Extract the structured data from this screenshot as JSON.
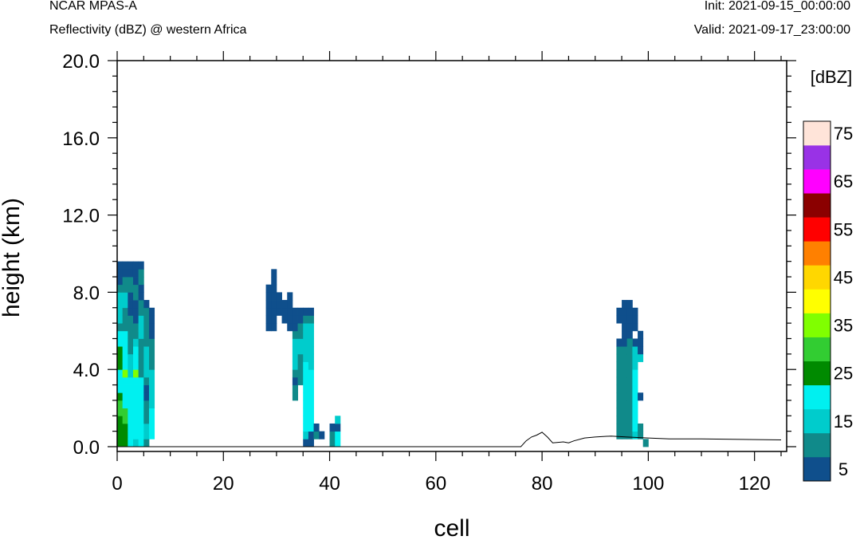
{
  "header": {
    "model": "NCAR MPAS-A",
    "field": "Reflectivity (dBZ) @ western Africa",
    "init": "Init: 2021-09-15_00:00:00",
    "valid": "Valid: 2021-09-17_23:00:00"
  },
  "colors": {
    "frame": "#000000",
    "background": "#ffffff",
    "terrain_line": "#000000"
  },
  "chart_data": {
    "type": "heatmap",
    "xlabel": "cell",
    "ylabel": "height (km)",
    "xlim": [
      0,
      126
    ],
    "ylim": [
      0,
      20
    ],
    "x_ticks": [
      "0",
      "20",
      "40",
      "60",
      "80",
      "100",
      "120"
    ],
    "y_ticks": [
      "0.0",
      "4.0",
      "8.0",
      "12.0",
      "16.0",
      "20.0"
    ],
    "cell_height_km": 0.4,
    "colorbar": {
      "unit_label": "[dBZ]",
      "bins": [
        {
          "color": "#0f4f8c"
        },
        {
          "color": "#108a8a"
        },
        {
          "color": "#00cccc"
        },
        {
          "color": "#00f0f0"
        },
        {
          "color": "#008a00"
        },
        {
          "color": "#32cd32"
        },
        {
          "color": "#80ff00"
        },
        {
          "color": "#ffff00"
        },
        {
          "color": "#ffd700"
        },
        {
          "color": "#ff8000"
        },
        {
          "color": "#ff0000"
        },
        {
          "color": "#8b0000"
        },
        {
          "color": "#ff00ff"
        },
        {
          "color": "#9932e6"
        },
        {
          "color": "#ffe4d9"
        }
      ],
      "tick_labels": [
        "5",
        "15",
        "25",
        "35",
        "45",
        "55",
        "65",
        "75"
      ]
    },
    "columns": [
      {
        "x": 0,
        "cells": [
          5,
          5,
          5,
          5,
          6,
          6,
          5,
          4,
          4,
          4,
          5,
          5,
          5,
          4,
          4,
          2,
          3,
          3,
          3,
          3,
          2,
          1,
          1,
          1,
          0
        ]
      },
      {
        "x": 1,
        "cells": [
          5,
          5,
          5,
          6,
          6,
          4,
          4,
          4,
          4,
          7,
          4,
          4,
          4,
          4,
          4,
          2,
          2,
          2,
          3,
          3,
          2,
          2,
          1,
          1,
          0
        ]
      },
      {
        "x": 2,
        "cells": [
          4,
          4,
          4,
          4,
          4,
          4,
          4,
          4,
          4,
          3,
          3,
          3,
          2,
          2,
          2,
          2,
          2,
          1,
          1,
          1,
          2,
          2,
          1,
          1,
          0
        ]
      },
      {
        "x": 3,
        "cells": [
          3,
          4,
          4,
          4,
          4,
          4,
          4,
          4,
          4,
          7,
          4,
          4,
          4,
          3,
          2,
          2,
          1,
          1,
          1,
          2,
          2,
          1,
          1,
          1,
          0
        ]
      },
      {
        "x": 4,
        "cells": [
          4,
          4,
          4,
          4,
          4,
          4,
          4,
          4,
          4,
          2,
          2,
          2,
          2,
          2,
          3,
          3,
          3,
          2,
          2,
          1,
          1,
          2,
          2,
          1,
          0
        ]
      },
      {
        "x": 5,
        "cells": [
          2,
          3,
          3,
          2,
          2,
          2,
          1,
          1,
          2,
          3,
          3,
          3,
          3,
          2,
          2,
          2,
          2,
          2,
          1,
          0,
          0,
          0,
          0,
          0,
          0
        ]
      },
      {
        "x": 6,
        "cells": [
          0,
          4,
          4,
          4,
          4,
          3,
          3,
          3,
          3,
          3,
          2,
          2,
          2,
          2,
          1,
          1,
          1,
          1,
          0,
          0,
          0,
          0,
          0,
          0,
          0
        ]
      },
      {
        "x": 28,
        "cells": [
          0,
          0,
          0,
          0,
          0,
          0,
          0,
          0,
          0,
          0,
          0,
          0,
          0,
          0,
          0,
          1,
          1,
          1,
          1,
          1,
          1,
          0,
          0,
          0,
          0
        ]
      },
      {
        "x": 29,
        "cells": [
          0,
          0,
          0,
          0,
          0,
          0,
          0,
          0,
          0,
          0,
          0,
          0,
          0,
          0,
          0,
          1,
          1,
          1,
          1,
          1,
          1,
          1,
          1,
          0,
          0
        ]
      },
      {
        "x": 30,
        "cells": [
          0,
          0,
          0,
          0,
          0,
          0,
          0,
          0,
          0,
          0,
          0,
          0,
          0,
          0,
          0,
          0,
          0,
          1,
          1,
          1,
          0,
          0,
          0,
          0,
          0
        ]
      },
      {
        "x": 31,
        "cells": [
          0,
          0,
          0,
          0,
          0,
          0,
          0,
          0,
          0,
          0,
          0,
          0,
          0,
          0,
          0,
          0,
          1,
          1,
          1,
          0,
          0,
          0,
          0,
          0,
          0
        ]
      },
      {
        "x": 32,
        "cells": [
          0,
          0,
          0,
          0,
          0,
          0,
          0,
          0,
          0,
          0,
          0,
          0,
          0,
          0,
          0,
          1,
          1,
          1,
          1,
          1,
          0,
          0,
          0,
          0,
          0
        ]
      },
      {
        "x": 33,
        "cells": [
          0,
          0,
          0,
          0,
          0,
          0,
          2,
          2,
          1,
          2,
          3,
          3,
          3,
          3,
          2,
          1,
          1,
          1,
          0,
          0,
          0,
          0,
          0,
          0,
          0
        ]
      },
      {
        "x": 34,
        "cells": [
          0,
          0,
          0,
          0,
          0,
          0,
          0,
          0,
          2,
          2,
          2,
          2,
          3,
          3,
          2,
          2,
          1,
          1,
          0,
          0,
          0,
          0,
          0,
          0,
          0
        ]
      },
      {
        "x": 35,
        "cells": [
          1,
          3,
          4,
          4,
          4,
          4,
          4,
          4,
          4,
          4,
          4,
          3,
          3,
          3,
          3,
          3,
          2,
          1,
          0,
          0,
          0,
          0,
          0,
          0,
          0
        ]
      },
      {
        "x": 36,
        "cells": [
          1,
          1,
          4,
          4,
          4,
          4,
          4,
          4,
          4,
          4,
          3,
          3,
          3,
          3,
          3,
          3,
          2,
          1,
          0,
          0,
          0,
          0,
          0,
          0,
          0
        ]
      },
      {
        "x": 37,
        "cells": [
          0,
          2,
          1,
          0,
          0,
          0,
          0,
          0,
          0,
          0,
          0,
          0,
          0,
          0,
          0,
          0,
          0,
          0,
          0,
          0,
          0,
          0,
          0,
          0,
          0
        ]
      },
      {
        "x": 38,
        "cells": [
          0,
          1,
          0,
          0,
          0,
          0,
          0,
          0,
          0,
          0,
          0,
          0,
          0,
          0,
          0,
          0,
          0,
          0,
          0,
          0,
          0,
          0,
          0,
          0,
          0
        ]
      },
      {
        "x": 40,
        "cells": [
          2,
          2,
          1,
          0,
          0,
          0,
          0,
          0,
          0,
          0,
          0,
          0,
          0,
          0,
          0,
          0,
          0,
          0,
          0,
          0,
          0,
          0,
          0,
          0,
          0
        ]
      },
      {
        "x": 41,
        "cells": [
          4,
          4,
          1,
          3,
          0,
          0,
          0,
          0,
          0,
          0,
          0,
          0,
          0,
          0,
          0,
          0,
          0,
          0,
          0,
          0,
          0,
          0,
          0,
          0,
          0
        ]
      },
      {
        "x": 94,
        "cells": [
          0,
          2,
          2,
          2,
          2,
          2,
          2,
          2,
          2,
          2,
          2,
          2,
          2,
          1,
          0,
          0,
          1,
          1,
          0,
          0,
          0,
          0,
          0,
          0,
          0
        ]
      },
      {
        "x": 95,
        "cells": [
          0,
          2,
          2,
          2,
          2,
          2,
          2,
          2,
          2,
          2,
          2,
          2,
          2,
          1,
          1,
          1,
          1,
          1,
          1,
          0,
          0,
          0,
          0,
          0,
          0
        ]
      },
      {
        "x": 96,
        "cells": [
          0,
          2,
          2,
          2,
          2,
          2,
          2,
          2,
          2,
          2,
          2,
          2,
          2,
          2,
          1,
          1,
          1,
          1,
          1,
          0,
          0,
          0,
          0,
          0,
          0
        ]
      },
      {
        "x": 97,
        "cells": [
          0,
          3,
          4,
          4,
          4,
          4,
          4,
          4,
          4,
          4,
          3,
          3,
          3,
          1,
          0,
          0,
          1,
          1,
          0,
          0,
          0,
          0,
          0,
          0,
          0
        ]
      },
      {
        "x": 98,
        "cells": [
          0,
          2,
          2,
          0,
          0,
          0,
          0,
          0,
          0,
          0,
          0,
          0,
          0,
          0,
          0,
          0,
          0,
          0,
          0,
          0,
          0,
          0,
          0,
          0,
          0
        ]
      }
    ],
    "extra_cells": [
      {
        "x": 96,
        "row": 13,
        "bin": 2
      },
      {
        "x": 97,
        "row": 15,
        "bin": 1
      },
      {
        "x": 98,
        "row": 6,
        "bin": 1
      },
      {
        "x": 98,
        "row": 11,
        "bin": 3
      },
      {
        "x": 98,
        "row": 12,
        "bin": 1
      },
      {
        "x": 98,
        "row": 13,
        "bin": 1
      },
      {
        "x": 98,
        "row": 14,
        "bin": 1
      },
      {
        "x": 99,
        "row": 0,
        "bin": 2
      }
    ],
    "terrain": [
      {
        "x": 0,
        "y": 0.0
      },
      {
        "x": 76,
        "y": 0.0
      },
      {
        "x": 77,
        "y": 0.3
      },
      {
        "x": 78,
        "y": 0.5
      },
      {
        "x": 79,
        "y": 0.6
      },
      {
        "x": 80,
        "y": 0.75
      },
      {
        "x": 81,
        "y": 0.5
      },
      {
        "x": 82,
        "y": 0.2
      },
      {
        "x": 84,
        "y": 0.25
      },
      {
        "x": 85,
        "y": 0.2
      },
      {
        "x": 86,
        "y": 0.3
      },
      {
        "x": 88,
        "y": 0.45
      },
      {
        "x": 90,
        "y": 0.5
      },
      {
        "x": 93,
        "y": 0.55
      },
      {
        "x": 96,
        "y": 0.5
      },
      {
        "x": 100,
        "y": 0.45
      },
      {
        "x": 104,
        "y": 0.4
      },
      {
        "x": 110,
        "y": 0.4
      },
      {
        "x": 116,
        "y": 0.38
      },
      {
        "x": 125,
        "y": 0.35
      }
    ]
  }
}
